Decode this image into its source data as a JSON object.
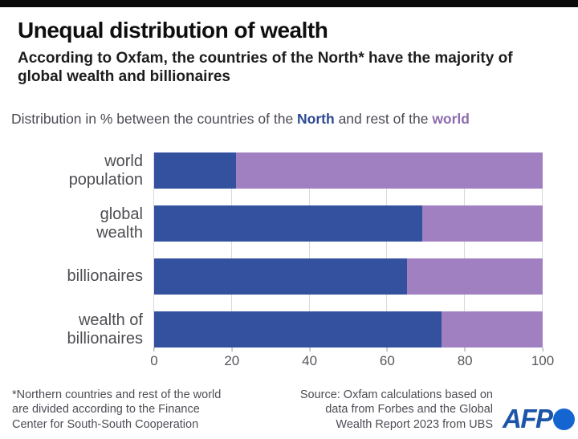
{
  "header": {
    "title": "Unequal distribution of wealth",
    "subtitle": "According to Oxfam, the countries of the North* have the majority of global wealth and billionaires"
  },
  "intro": {
    "prefix": "Distribution in % between the countries of the ",
    "north_label": "North",
    "middle": " and rest of the ",
    "world_label": "world"
  },
  "chart_data": {
    "type": "bar",
    "orientation": "horizontal",
    "stacked": true,
    "title": "Distribution in % between the countries of the North and rest of the world",
    "categories": [
      "world\npopulation",
      "global\nwealth",
      "billionaires",
      "wealth of\nbillionaires"
    ],
    "series": [
      {
        "name": "North",
        "color": "#33519e",
        "values": [
          21,
          69,
          65,
          74
        ]
      },
      {
        "name": "rest of the world",
        "color": "#a180c2",
        "values": [
          79,
          31,
          35,
          26
        ]
      }
    ],
    "xlim": [
      0,
      100
    ],
    "xticks": [
      0,
      20,
      40,
      60,
      80,
      100
    ],
    "grid": true,
    "legend_position": "none"
  },
  "colors": {
    "north": "#2e4a91",
    "world": "#8d6bae",
    "bar_blue": "#33519e",
    "bar_purple": "#a180c2",
    "afp_blue": "#1465d0"
  },
  "footer": {
    "footnote": "*Northern countries and rest of the world\nare divided according to the Finance\nCenter for South-South Cooperation",
    "source": "Source: Oxfam calculations based on\ndata from Forbes and the Global\nWealth Report 2023 from UBS",
    "logo_text": "AFP"
  }
}
